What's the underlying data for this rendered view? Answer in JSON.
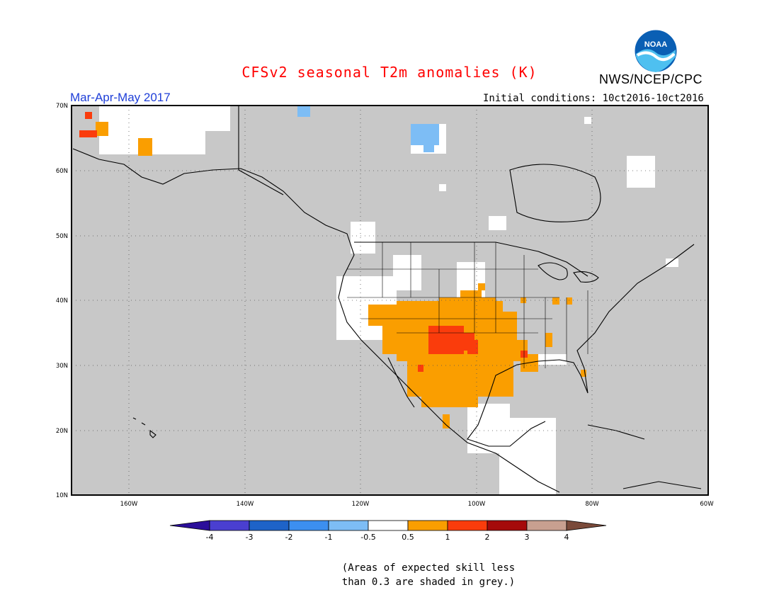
{
  "title": "CFSv2 seasonal T2m anomalies (K)",
  "agency": "NWS/NCEP/CPC",
  "logo_text": "NOAA",
  "season": "Mar-Apr-May 2017",
  "initial_conditions": "Initial conditions: 10ct2016-10ct2016",
  "note": [
    "(Areas of expected skill less",
    "than 0.3 are shaded in grey.)"
  ],
  "map": {
    "lon_range": [
      -170,
      -60
    ],
    "lat_range": [
      10,
      70
    ],
    "lat_labels": [
      "10N",
      "20N",
      "30N",
      "40N",
      "50N",
      "60N",
      "70N"
    ],
    "lon_labels": [
      "160W",
      "140W",
      "120W",
      "100W",
      "80W",
      "60W"
    ]
  },
  "colorbar": {
    "labels": [
      "-4",
      "-3",
      "-2",
      "-1",
      "-0.5",
      "0.5",
      "1",
      "2",
      "3",
      "4"
    ],
    "colors": [
      "#2b0e9a",
      "#4a3fd0",
      "#1e63c8",
      "#3c8ff0",
      "#7dbdf5",
      "#ffffff",
      "#fa9e00",
      "#fa3c0c",
      "#a50a0a",
      "#c8a090",
      "#7a4a3a"
    ]
  },
  "colors": {
    "land_grey": "#c8c8c8",
    "title_red": "#ff0000",
    "season_blue": "#1f3fd8"
  }
}
